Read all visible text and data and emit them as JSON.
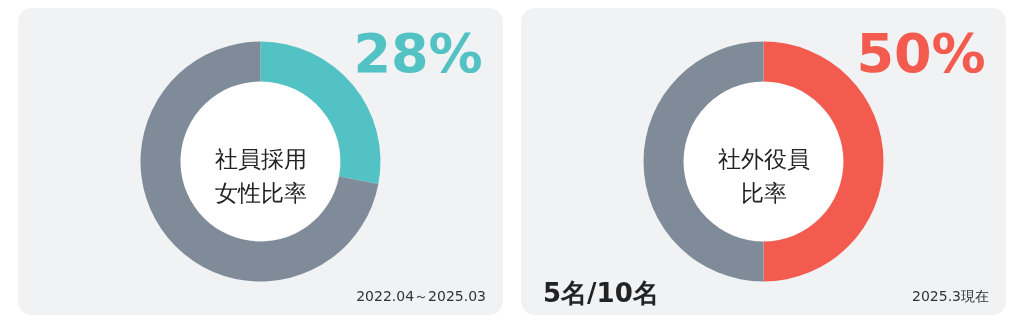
{
  "chart_data": [
    {
      "type": "donut",
      "title": "社員採用女性比率",
      "categories": [
        null,
        null
      ],
      "values": [
        28,
        72
      ],
      "colors": [
        "#52c2c4",
        "#7f8b99"
      ],
      "value_labels": [
        "28%",
        null
      ],
      "annotations": [
        "2022.04～2025.03"
      ]
    },
    {
      "type": "donut",
      "title": "社外役員比率",
      "categories": [
        null,
        null
      ],
      "values": [
        50,
        50
      ],
      "colors": [
        "#f35b4f",
        "#7f8b99"
      ],
      "value_labels": [
        "50%",
        null
      ],
      "annotations": [
        "5名/10名",
        "2025.3現在"
      ]
    }
  ]
}
